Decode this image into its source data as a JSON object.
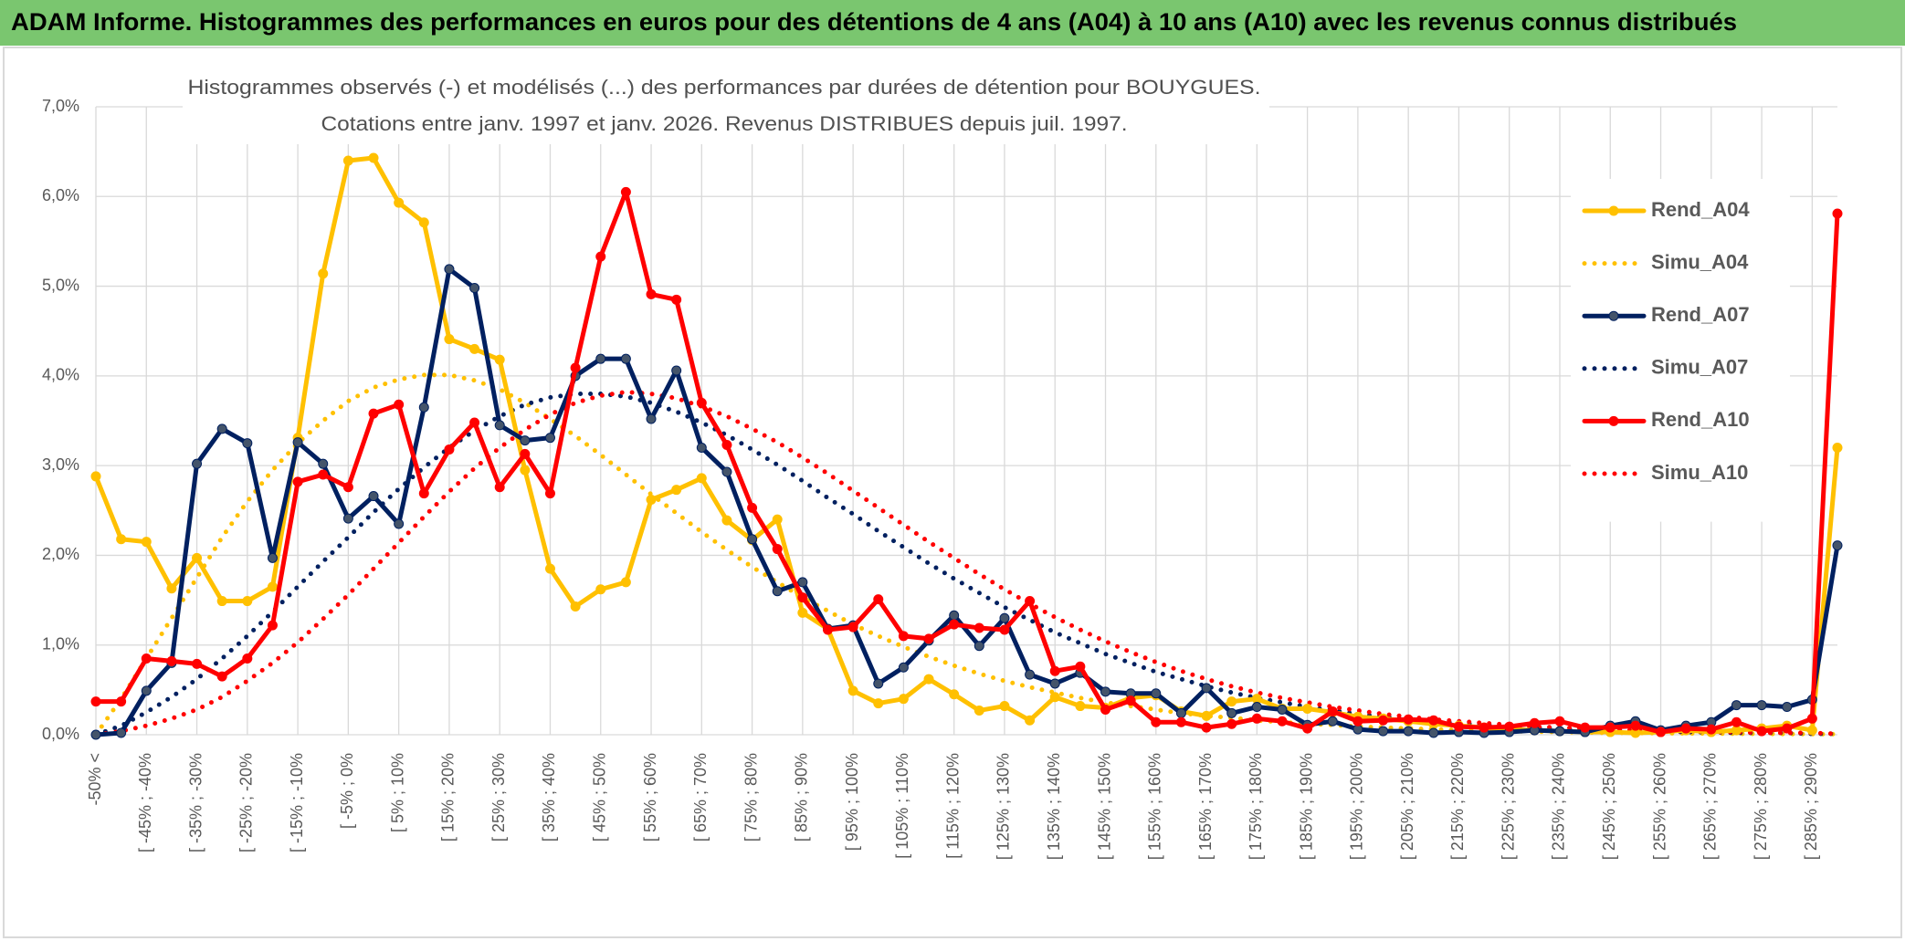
{
  "chart_data": {
    "type": "line",
    "title": "ADAM Informe. Histogrammes des performances en euros pour des détentions de 4 ans (A04) à 10 ans (A10) avec les revenus connus distribués",
    "subtitle": [
      "Histogrammes observés (-) et modélisés (...) des performances par durées de détention pour BOUYGUES.",
      "Cotations entre janv. 1997 et janv. 2026. Revenus DISTRIBUES depuis juil. 1997."
    ],
    "categories": [
      "-50% <",
      null,
      "[ -45% ; -40%",
      null,
      "[ -35% ; -30%",
      null,
      "[ -25% ; -20%",
      null,
      "[ -15% ; -10%",
      null,
      "[ -5% ; 0%",
      null,
      "[ 5% ; 10%",
      null,
      "[ 15% ; 20%",
      null,
      "[ 25% ; 30%",
      null,
      "[ 35% ; 40%",
      null,
      "[ 45% ; 50%",
      null,
      "[ 55% ; 60%",
      null,
      "[ 65% ; 70%",
      null,
      "[ 75% ; 80%",
      null,
      "[ 85% ; 90%",
      null,
      "[ 95% ; 100%",
      null,
      "[ 105% ; 110%",
      null,
      "[ 115% ; 120%",
      null,
      "[ 125% ; 130%",
      null,
      "[ 135% ; 140%",
      null,
      "[ 145% ; 150%",
      null,
      "[ 155% ; 160%",
      null,
      "[ 165% ; 170%",
      null,
      "[ 175% ; 180%",
      null,
      "[ 185% ; 190%",
      null,
      "[ 195% ; 200%",
      null,
      "[ 205% ; 210%",
      null,
      "[ 215% ; 220%",
      null,
      "[ 225% ; 230%",
      null,
      "[ 235% ; 240%",
      null,
      "[ 245% ; 250%",
      null,
      "[ 255% ; 260%",
      null,
      "[ 265% ; 270%",
      null,
      "[ 275% ; 280%",
      null,
      "[ 285% ; 290%",
      null
    ],
    "series": [
      {
        "name": "Rend_A04",
        "color": "#ffc000",
        "marker_color": "#ffc000",
        "dash": "solid",
        "values": [
          2.88,
          2.18,
          2.15,
          1.63,
          1.97,
          1.49,
          1.49,
          1.65,
          3.31,
          5.14,
          6.4,
          6.43,
          5.93,
          5.71,
          4.41,
          4.3,
          4.18,
          2.95,
          1.85,
          1.43,
          1.62,
          1.7,
          2.62,
          2.73,
          2.86,
          2.39,
          2.17,
          2.4,
          1.36,
          1.18,
          0.49,
          0.35,
          0.4,
          0.62,
          0.45,
          0.27,
          0.32,
          0.16,
          0.42,
          0.32,
          0.3,
          0.41,
          0.44,
          0.26,
          0.21,
          0.37,
          0.4,
          0.29,
          0.29,
          0.25,
          0.2,
          0.18,
          0.15,
          0.12,
          0.1,
          0.08,
          0.06,
          0.05,
          0.04,
          0.03,
          0.03,
          0.02,
          0.03,
          0.05,
          0.03,
          0.05,
          0.07,
          0.1,
          0.05,
          3.2
        ]
      },
      {
        "name": "Simu_A04",
        "color": "#ffc000",
        "dash": "dotted",
        "values": [
          0,
          0.4,
          0.85,
          1.3,
          1.75,
          2.2,
          2.6,
          2.95,
          3.25,
          3.5,
          3.72,
          3.87,
          3.96,
          4.01,
          4.01,
          3.95,
          3.85,
          3.7,
          3.52,
          3.33,
          3.12,
          2.9,
          2.68,
          2.47,
          2.26,
          2.06,
          1.87,
          1.7,
          1.53,
          1.38,
          1.23,
          1.1,
          0.98,
          0.87,
          0.77,
          0.68,
          0.6,
          0.53,
          0.47,
          0.41,
          0.36,
          0.32,
          0.28,
          0.24,
          0.21,
          0.19,
          0.16,
          0.14,
          0.12,
          0.11,
          0.09,
          0.08,
          0.07,
          0.06,
          0.05,
          0.045,
          0.04,
          0.035,
          0.03,
          0.025,
          0.02,
          0.02,
          0.017,
          0.015,
          0.013,
          0.011,
          0.01,
          0.008,
          0.007,
          0.006
        ]
      },
      {
        "name": "Rend_A07",
        "color": "#002060",
        "marker_color": "#44546a",
        "dash": "solid",
        "values": [
          0.0,
          0.02,
          0.49,
          0.8,
          3.02,
          3.41,
          3.25,
          1.97,
          3.26,
          3.02,
          2.41,
          2.66,
          2.35,
          3.65,
          5.19,
          4.98,
          3.45,
          3.28,
          3.31,
          4.0,
          4.19,
          4.19,
          3.52,
          4.06,
          3.2,
          2.93,
          2.18,
          1.6,
          1.7,
          1.18,
          1.22,
          0.57,
          0.75,
          1.05,
          1.33,
          0.99,
          1.3,
          0.67,
          0.57,
          0.69,
          0.48,
          0.46,
          0.46,
          0.24,
          0.52,
          0.24,
          0.31,
          0.28,
          0.11,
          0.15,
          0.06,
          0.04,
          0.04,
          0.02,
          0.03,
          0.02,
          0.03,
          0.05,
          0.04,
          0.03,
          0.1,
          0.15,
          0.05,
          0.1,
          0.14,
          0.33,
          0.33,
          0.31,
          0.39,
          2.11
        ]
      },
      {
        "name": "Simu_A07",
        "color": "#002060",
        "dash": "dotted",
        "values": [
          0,
          0.1,
          0.25,
          0.42,
          0.62,
          0.85,
          1.1,
          1.37,
          1.65,
          1.93,
          2.2,
          2.48,
          2.74,
          2.98,
          3.2,
          3.39,
          3.55,
          3.68,
          3.76,
          3.8,
          3.8,
          3.77,
          3.7,
          3.6,
          3.48,
          3.34,
          3.18,
          3.01,
          2.83,
          2.64,
          2.46,
          2.27,
          2.09,
          1.91,
          1.74,
          1.58,
          1.42,
          1.28,
          1.14,
          1.02,
          0.9,
          0.8,
          0.7,
          0.62,
          0.54,
          0.47,
          0.41,
          0.36,
          0.31,
          0.27,
          0.23,
          0.2,
          0.17,
          0.15,
          0.13,
          0.11,
          0.09,
          0.08,
          0.07,
          0.06,
          0.05,
          0.04,
          0.04,
          0.03,
          0.03,
          0.02,
          0.02,
          0.02,
          0.01,
          0.01
        ]
      },
      {
        "name": "Rend_A10",
        "color": "#ff0000",
        "marker_color": "#ff0000",
        "dash": "solid",
        "values": [
          0.37,
          0.37,
          0.85,
          0.82,
          0.79,
          0.65,
          0.85,
          1.22,
          2.82,
          2.9,
          2.76,
          3.58,
          3.68,
          2.69,
          3.18,
          3.48,
          2.76,
          3.13,
          2.69,
          4.09,
          5.33,
          6.05,
          4.91,
          4.85,
          3.7,
          3.23,
          2.53,
          2.07,
          1.53,
          1.17,
          1.2,
          1.51,
          1.1,
          1.07,
          1.23,
          1.19,
          1.17,
          1.49,
          0.71,
          0.76,
          0.28,
          0.38,
          0.14,
          0.14,
          0.08,
          0.12,
          0.18,
          0.15,
          0.07,
          0.26,
          0.15,
          0.16,
          0.17,
          0.16,
          0.09,
          0.08,
          0.09,
          0.13,
          0.15,
          0.08,
          0.08,
          0.1,
          0.03,
          0.07,
          0.06,
          0.14,
          0.04,
          0.07,
          0.18,
          5.81
        ]
      },
      {
        "name": "Simu_A10",
        "color": "#ff0000",
        "dash": "dotted",
        "values": [
          0,
          0.04,
          0.1,
          0.18,
          0.28,
          0.42,
          0.6,
          0.8,
          1.03,
          1.29,
          1.56,
          1.85,
          2.14,
          2.43,
          2.71,
          2.97,
          3.2,
          3.4,
          3.57,
          3.7,
          3.78,
          3.82,
          3.8,
          3.75,
          3.66,
          3.55,
          3.41,
          3.26,
          3.09,
          2.91,
          2.72,
          2.53,
          2.34,
          2.15,
          1.97,
          1.79,
          1.62,
          1.46,
          1.31,
          1.17,
          1.04,
          0.92,
          0.81,
          0.71,
          0.62,
          0.54,
          0.47,
          0.41,
          0.36,
          0.31,
          0.27,
          0.23,
          0.2,
          0.17,
          0.15,
          0.13,
          0.11,
          0.09,
          0.08,
          0.07,
          0.06,
          0.05,
          0.04,
          0.04,
          0.03,
          0.03,
          0.02,
          0.02,
          0.02,
          0.01
        ]
      }
    ],
    "ylim": [
      0,
      7
    ],
    "yticks": [
      {
        "value": 0,
        "label": "0,0%"
      },
      {
        "value": 1,
        "label": "1,0%"
      },
      {
        "value": 2,
        "label": "2,0%"
      },
      {
        "value": 3,
        "label": "3,0%"
      },
      {
        "value": 4,
        "label": "4,0%"
      },
      {
        "value": 5,
        "label": "5,0%"
      },
      {
        "value": 6,
        "label": "6,0%"
      },
      {
        "value": 7,
        "label": "7,0%"
      }
    ],
    "grid": true,
    "legend": "right"
  }
}
